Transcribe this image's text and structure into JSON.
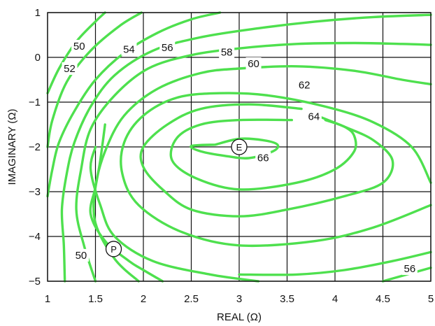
{
  "chart_data": {
    "type": "contour",
    "xlabel": "REAL (Ω)",
    "ylabel": "IMAGINARY (Ω)",
    "xlim": [
      1,
      5
    ],
    "ylim": [
      -5,
      1
    ],
    "grid": true,
    "x_ticks": [
      "1",
      "1.5",
      "2",
      "2.5",
      "3",
      "3.5",
      "4",
      "4.5",
      "5"
    ],
    "y_ticks": [
      "1",
      "0",
      "−1",
      "−2",
      "−3",
      "−4",
      "−5"
    ],
    "line_color": "#4ee04e",
    "contours": [
      {
        "level": "50",
        "points": [
          [
            1.0,
            -0.8
          ],
          [
            1.12,
            -0.25
          ],
          [
            1.3,
            0.35
          ],
          [
            1.5,
            0.8
          ],
          [
            1.6,
            1.0
          ]
        ]
      },
      {
        "level": "52",
        "points": [
          [
            1.0,
            -2.0
          ],
          [
            1.05,
            -1.4
          ],
          [
            1.2,
            -0.55
          ],
          [
            1.45,
            0.15
          ],
          [
            1.75,
            0.7
          ],
          [
            1.98,
            1.0
          ]
        ]
      },
      {
        "level": "54",
        "points": [
          [
            1.0,
            -3.1
          ],
          [
            1.05,
            -2.5
          ],
          [
            1.12,
            -1.9
          ],
          [
            1.28,
            -1.2
          ],
          [
            1.5,
            -0.5
          ],
          [
            1.8,
            0.1
          ],
          [
            2.15,
            0.55
          ],
          [
            2.5,
            0.85
          ],
          [
            2.8,
            1.0
          ]
        ]
      },
      {
        "level": "56",
        "points": [
          [
            1.18,
            -5.0
          ],
          [
            1.17,
            -4.2
          ],
          [
            1.15,
            -3.4
          ],
          [
            1.2,
            -2.6
          ],
          [
            1.28,
            -1.9
          ],
          [
            1.45,
            -1.1
          ],
          [
            1.7,
            -0.4
          ],
          [
            2.1,
            0.15
          ],
          [
            2.6,
            0.45
          ],
          [
            3.2,
            0.65
          ],
          [
            3.8,
            0.8
          ],
          [
            4.4,
            0.9
          ],
          [
            5.0,
            0.95
          ]
        ]
      },
      {
        "level": "58",
        "points": [
          [
            1.5,
            -5.0
          ],
          [
            1.38,
            -4.2
          ],
          [
            1.3,
            -3.4
          ],
          [
            1.35,
            -2.5
          ],
          [
            1.45,
            -1.6
          ],
          [
            1.7,
            -0.85
          ],
          [
            2.05,
            -0.25
          ],
          [
            2.5,
            0.05
          ],
          [
            3.0,
            0.2
          ],
          [
            3.6,
            0.3
          ],
          [
            4.2,
            0.32
          ],
          [
            4.7,
            0.3
          ],
          [
            5.0,
            0.28
          ]
        ]
      },
      {
        "level": "60",
        "points": [
          [
            1.95,
            -5.0
          ],
          [
            1.7,
            -4.5
          ],
          [
            1.5,
            -3.7
          ],
          [
            1.5,
            -2.9
          ],
          [
            1.6,
            -2.1
          ],
          [
            1.8,
            -1.3
          ],
          [
            2.15,
            -0.7
          ],
          [
            2.6,
            -0.35
          ],
          [
            3.0,
            -0.25
          ],
          [
            3.6,
            -0.2
          ],
          [
            4.2,
            -0.3
          ],
          [
            4.7,
            -0.5
          ],
          [
            5.0,
            -0.6
          ]
        ]
      },
      {
        "level": "62",
        "points": [
          [
            5.0,
            -2.8
          ],
          [
            4.8,
            -2.0
          ],
          [
            4.4,
            -1.45
          ],
          [
            3.9,
            -1.1
          ],
          [
            3.3,
            -0.85
          ],
          [
            2.8,
            -0.8
          ],
          [
            2.35,
            -0.9
          ],
          [
            2.0,
            -1.3
          ],
          [
            1.8,
            -1.9
          ],
          [
            1.78,
            -2.6
          ],
          [
            1.95,
            -3.3
          ],
          [
            2.4,
            -3.9
          ],
          [
            3.0,
            -4.2
          ],
          [
            3.8,
            -4.1
          ],
          [
            4.4,
            -3.8
          ],
          [
            5.0,
            -3.3
          ]
        ]
      },
      {
        "level": "64",
        "points": [
          [
            3.65,
            -1.15
          ],
          [
            3.1,
            -1.05
          ],
          [
            2.6,
            -1.15
          ],
          [
            2.25,
            -1.5
          ],
          [
            2.0,
            -2.0
          ],
          [
            2.0,
            -2.45
          ],
          [
            2.2,
            -2.95
          ],
          [
            2.5,
            -3.4
          ],
          [
            3.0,
            -3.55
          ],
          [
            3.5,
            -3.4
          ],
          [
            4.1,
            -3.1
          ],
          [
            4.5,
            -2.8
          ],
          [
            4.6,
            -2.3
          ],
          [
            4.4,
            -1.85
          ],
          [
            4.1,
            -1.55
          ],
          [
            3.75,
            -1.25
          ]
        ]
      },
      {
        "level": "64b",
        "points": [
          [
            3.9,
            -1.4
          ],
          [
            4.1,
            -1.55
          ],
          [
            4.2,
            -1.75
          ],
          [
            4.2,
            -2.1
          ],
          [
            4.0,
            -2.5
          ],
          [
            3.6,
            -2.8
          ],
          [
            3.0,
            -2.95
          ],
          [
            2.55,
            -2.7
          ],
          [
            2.3,
            -2.3
          ],
          [
            2.35,
            -1.8
          ],
          [
            2.6,
            -1.5
          ],
          [
            3.0,
            -1.4
          ],
          [
            3.55,
            -1.4
          ]
        ]
      },
      {
        "level": "66",
        "points": [
          [
            2.75,
            -1.95
          ],
          [
            3.0,
            -1.82
          ],
          [
            3.25,
            -1.85
          ],
          [
            3.4,
            -1.95
          ],
          [
            3.35,
            -2.1
          ],
          [
            3.1,
            -2.25
          ],
          [
            2.85,
            -2.2
          ],
          [
            2.6,
            -2.1
          ],
          [
            2.5,
            -1.98
          ],
          [
            2.75,
            -1.95
          ]
        ]
      },
      {
        "level": "50",
        "points": [
          [
            2.2,
            -5.0
          ],
          [
            2.0,
            -4.75
          ],
          [
            1.85,
            -4.55
          ],
          [
            1.6,
            -4.1
          ],
          [
            1.45,
            -3.5
          ],
          [
            1.5,
            -2.9
          ],
          [
            1.55,
            -2.3
          ],
          [
            1.6,
            -1.5
          ]
        ]
      },
      {
        "level": "56",
        "points": [
          [
            1.5,
            -2.0
          ],
          [
            1.45,
            -2.5
          ],
          [
            1.55,
            -3.3
          ],
          [
            1.7,
            -4.0
          ],
          [
            2.1,
            -4.55
          ],
          [
            2.7,
            -4.85
          ],
          [
            3.2,
            -5.0
          ]
        ]
      },
      {
        "level": "58",
        "points": [
          [
            5.0,
            -4.7
          ],
          [
            4.5,
            -5.0
          ]
        ]
      },
      {
        "level": "56",
        "points": [
          [
            5.0,
            -4.35
          ],
          [
            4.6,
            -4.55
          ],
          [
            4.1,
            -4.75
          ],
          [
            3.6,
            -4.85
          ],
          [
            3.0,
            -4.85
          ]
        ]
      }
    ],
    "contour_labels": [
      {
        "text": "50",
        "x": 1.33,
        "y": 0.25
      },
      {
        "text": "52",
        "x": 1.23,
        "y": -0.25
      },
      {
        "text": "54",
        "x": 1.85,
        "y": 0.18
      },
      {
        "text": "56",
        "x": 2.25,
        "y": 0.22
      },
      {
        "text": "58",
        "x": 2.87,
        "y": 0.12
      },
      {
        "text": "60",
        "x": 3.15,
        "y": -0.14
      },
      {
        "text": "62",
        "x": 3.68,
        "y": -0.62
      },
      {
        "text": "64",
        "x": 3.78,
        "y": -1.32
      },
      {
        "text": "66",
        "x": 3.25,
        "y": -2.24
      },
      {
        "text": "50",
        "x": 1.35,
        "y": -4.42
      },
      {
        "text": "56",
        "x": 4.78,
        "y": -4.72
      }
    ],
    "markers": [
      {
        "text": "E",
        "x": 3.0,
        "y": -2.0
      },
      {
        "text": "P",
        "x": 1.69,
        "y": -4.28
      }
    ]
  }
}
